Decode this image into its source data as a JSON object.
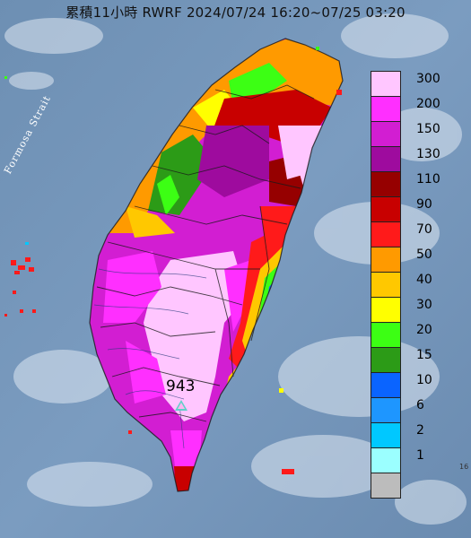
{
  "title": "累積11小時 RWRF 2024/07/24 16:20~07/25 03:20",
  "strait_label": "Formosa Strait",
  "max_value": "943",
  "legend": [
    {
      "label": "300",
      "color": "#ffc6ff"
    },
    {
      "label": "200",
      "color": "#ff2fff"
    },
    {
      "label": "150",
      "color": "#d21ed2"
    },
    {
      "label": "130",
      "color": "#9e0b9e"
    },
    {
      "label": "110",
      "color": "#960000"
    },
    {
      "label": "90",
      "color": "#c80000"
    },
    {
      "label": "70",
      "color": "#ff1a1a"
    },
    {
      "label": "50",
      "color": "#ff9a00"
    },
    {
      "label": "40",
      "color": "#ffc800"
    },
    {
      "label": "30",
      "color": "#ffff00"
    },
    {
      "label": "20",
      "color": "#3cff14"
    },
    {
      "label": "15",
      "color": "#2c9b17"
    },
    {
      "label": "10",
      "color": "#0a64ff"
    },
    {
      "label": "6",
      "color": "#1e96ff"
    },
    {
      "label": "2",
      "color": "#00c8ff"
    },
    {
      "label": "1",
      "color": "#9bffff"
    },
    {
      "label": "",
      "color": "#bcbcbc"
    }
  ],
  "corner_mark": "16"
}
